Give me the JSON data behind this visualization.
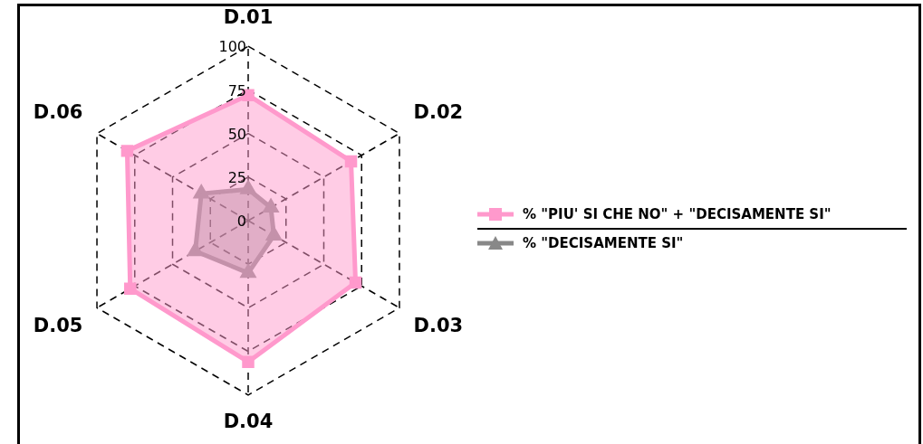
{
  "chart_data": {
    "type": "radar",
    "categories": [
      "D.01",
      "D.02",
      "D.03",
      "D.04",
      "D.05",
      "D.06"
    ],
    "series": [
      {
        "name": "% \"PIU' SI CHE NO\" + \"DECISAMENTE SI\"",
        "color": "#ff99cc",
        "marker": "square",
        "values": [
          72,
          68,
          71,
          81,
          78,
          80
        ]
      },
      {
        "name": "% \"DECISAMENTE SI\"",
        "color": "#888888",
        "marker": "triangle",
        "values": [
          18,
          15,
          17,
          30,
          35,
          31
        ]
      }
    ],
    "ylim": [
      0,
      100
    ],
    "yticks": [
      0,
      25,
      50,
      75,
      100
    ],
    "grid": true,
    "legend": "right",
    "line_style": "solid"
  }
}
